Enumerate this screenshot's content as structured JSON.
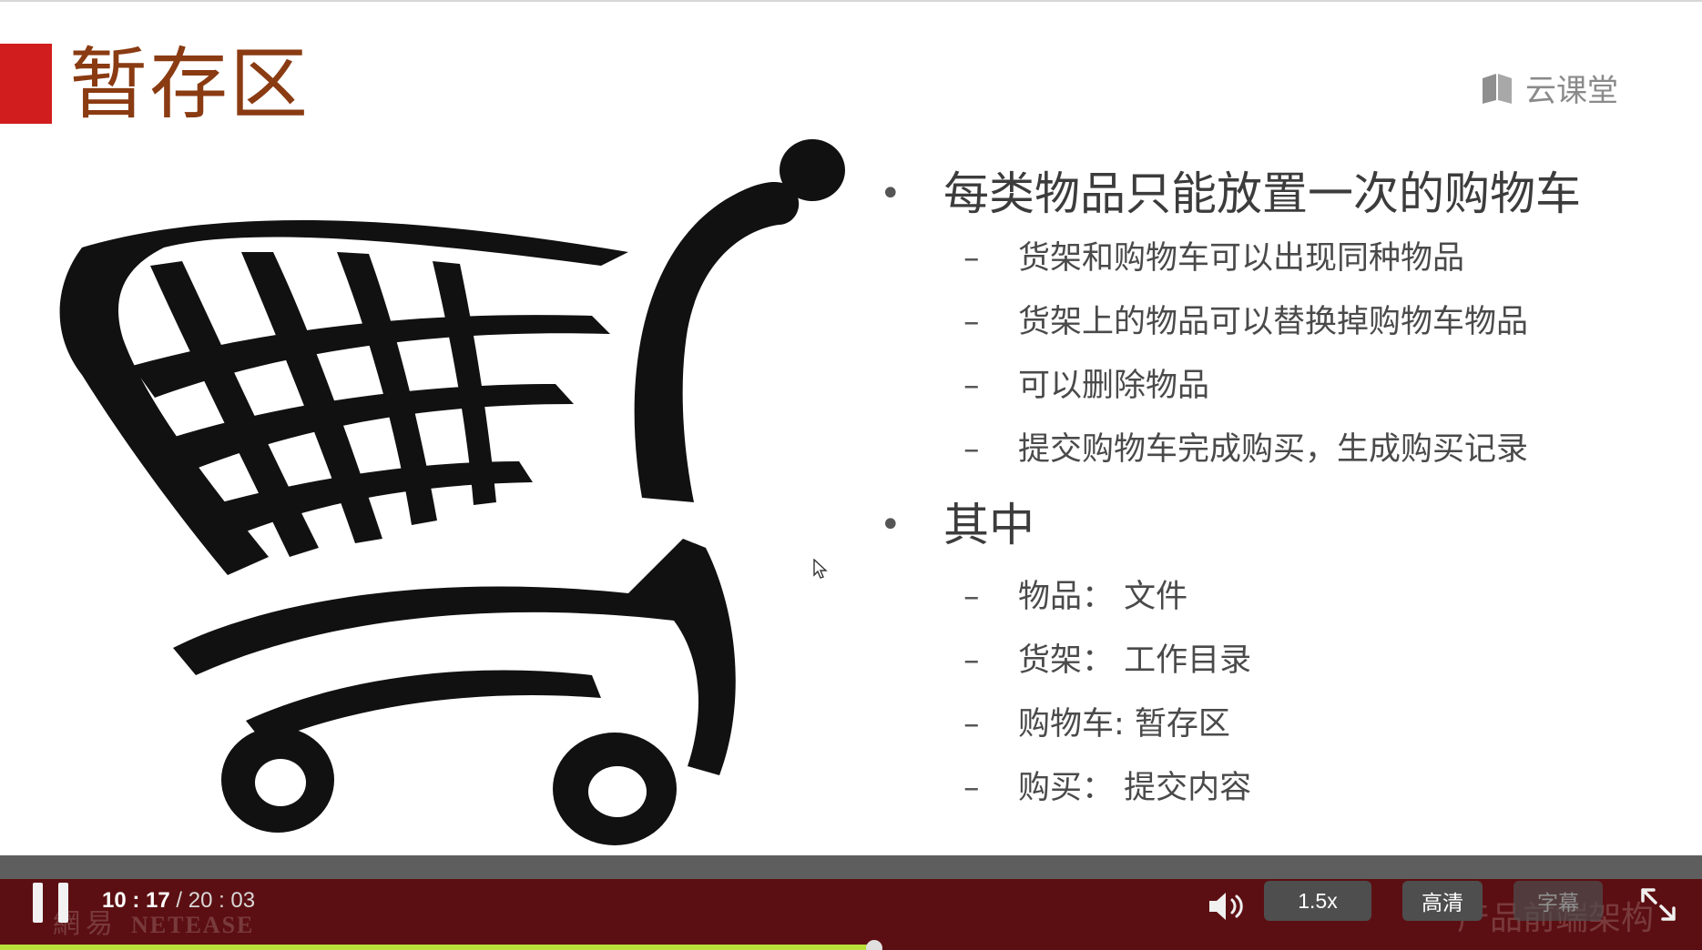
{
  "slide": {
    "title": "暂存区",
    "brand": {
      "label": "云课堂",
      "icon": "book-icon"
    },
    "illustration": "shopping-cart-icon",
    "bullets": [
      {
        "text": "每类物品只能放置一次的购物车",
        "sub": [
          "货架和购物车可以出现同种物品",
          "货架上的物品可以替换掉购物车物品",
          "可以删除物品",
          "提交购物车完成购买，生成购买记录"
        ]
      },
      {
        "text": "其中",
        "sub": [
          "物品： 文件",
          "货架： 工作目录",
          "购物车: 暂存区",
          "购买： 提交内容"
        ]
      }
    ]
  },
  "player": {
    "current_time": "10 : 17",
    "separator": " / ",
    "total_time": "20 : 03",
    "progress": 0.514,
    "speed_label": "1.5x",
    "quality_label": "高清",
    "subtitle_label": "字幕",
    "watermark_left_cn": "網易",
    "watermark_left_en": "NETEASE",
    "watermark_right": "产品前端架构",
    "icons": {
      "pause": "pause-icon",
      "volume": "volume-icon",
      "fullscreen": "fullscreen-icon"
    },
    "colors": {
      "bar": "#5c0f12",
      "progress": "#b9df3b",
      "accent": "#d11d1d"
    }
  }
}
